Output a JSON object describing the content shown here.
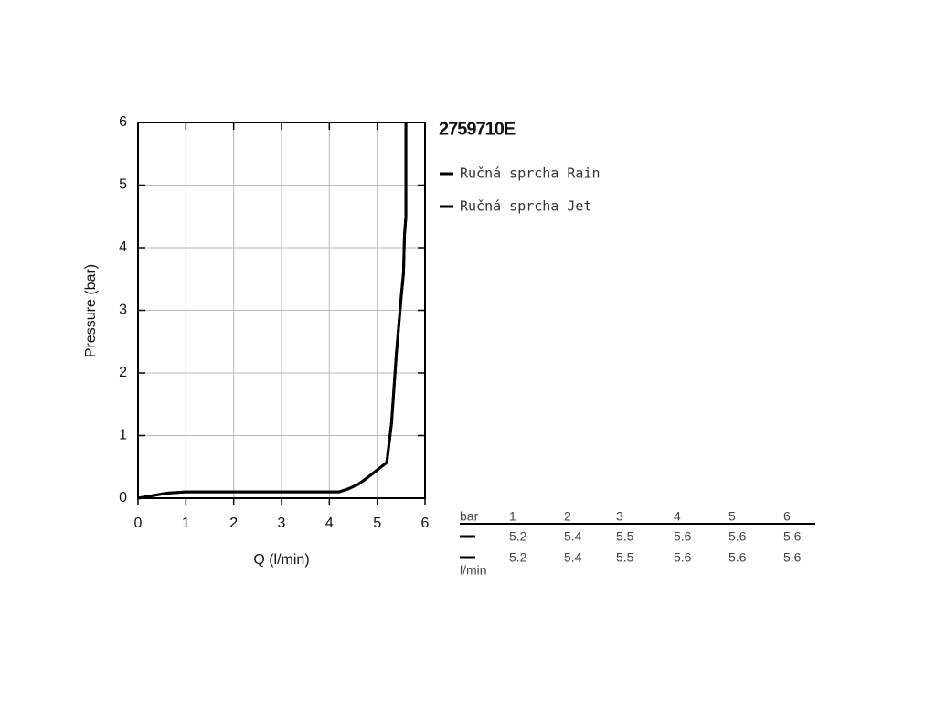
{
  "chart_data": {
    "type": "line",
    "title": "2759710E",
    "x_label": "Q (l/min)",
    "y_label": "Pressure (bar)",
    "x": [
      0,
      0.3,
      0.6,
      1,
      2,
      3,
      4,
      4.2,
      4.4,
      4.6,
      4.8,
      5,
      5.2,
      5.3,
      5.4,
      5.5,
      5.55,
      5.57,
      5.6,
      5.6
    ],
    "series": [
      {
        "name": "Ručná sprcha Rain",
        "color": "#000000",
        "values": [
          0,
          0.04,
          0.08,
          0.1,
          0.1,
          0.1,
          0.1,
          0.1,
          0.15,
          0.22,
          0.33,
          0.45,
          0.57,
          1.2,
          2.3,
          3.2,
          3.6,
          4.2,
          4.5,
          6
        ]
      },
      {
        "name": "Ručná sprcha Jet",
        "color": "#000000",
        "values": [
          0,
          0.04,
          0.08,
          0.1,
          0.1,
          0.1,
          0.1,
          0.1,
          0.15,
          0.22,
          0.33,
          0.45,
          0.57,
          1.2,
          2.3,
          3.2,
          3.6,
          4.2,
          4.5,
          6
        ]
      }
    ],
    "xlim": [
      0,
      6
    ],
    "ylim": [
      0,
      6
    ],
    "xticks": [
      0,
      1,
      2,
      3,
      4,
      5,
      6
    ],
    "yticks": [
      0,
      1,
      2,
      3,
      4,
      5,
      6
    ],
    "grid": true
  },
  "table": {
    "header": [
      "bar",
      1,
      2,
      3,
      4,
      5,
      6
    ],
    "rows": [
      [
        5.2,
        5.4,
        5.5,
        5.6,
        5.6,
        5.6
      ],
      [
        5.2,
        5.4,
        5.5,
        5.6,
        5.6,
        5.6
      ]
    ],
    "unit": "l/min"
  }
}
